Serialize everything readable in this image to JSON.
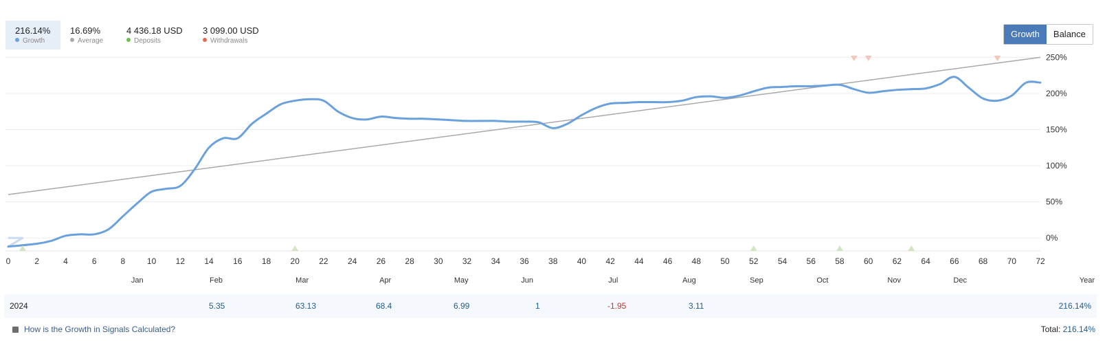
{
  "stats": [
    {
      "value": "216.14%",
      "label": "Growth",
      "color": "#6aa0dc"
    },
    {
      "value": "16.69%",
      "label": "Average",
      "color": "#a8a8a8"
    },
    {
      "value": "4 436.18 USD",
      "label": "Deposits",
      "color": "#6cbf4e"
    },
    {
      "value": "3 099.00 USD",
      "label": "Withdrawals",
      "color": "#e56b53"
    }
  ],
  "toggle": {
    "growth_label": "Growth",
    "balance_label": "Balance"
  },
  "chart_data": {
    "type": "line",
    "xlim": [
      0,
      72
    ],
    "ylim": [
      -18,
      258
    ],
    "x_ticks": [
      0,
      2,
      4,
      6,
      8,
      10,
      12,
      14,
      16,
      18,
      20,
      22,
      24,
      26,
      28,
      30,
      32,
      34,
      36,
      38,
      40,
      42,
      44,
      46,
      48,
      50,
      52,
      54,
      56,
      58,
      60,
      62,
      64,
      66,
      68,
      70,
      72
    ],
    "y_ticks": [
      0,
      50,
      100,
      150,
      200,
      250
    ],
    "y_tick_labels": [
      "0%",
      "50%",
      "100%",
      "150%",
      "200%",
      "250%"
    ],
    "months": [
      {
        "label": "Jan",
        "x": 9
      },
      {
        "label": "Feb",
        "x": 14.5
      },
      {
        "label": "Mar",
        "x": 20.5
      },
      {
        "label": "Apr",
        "x": 26.3
      },
      {
        "label": "May",
        "x": 31.6
      },
      {
        "label": "Jun",
        "x": 36.2
      },
      {
        "label": "Jul",
        "x": 42.2
      },
      {
        "label": "Aug",
        "x": 47.5
      },
      {
        "label": "Sep",
        "x": 52.2
      },
      {
        "label": "Oct",
        "x": 56.8
      },
      {
        "label": "Nov",
        "x": 61.8
      },
      {
        "label": "Dec",
        "x": 66.4
      }
    ],
    "year_label": "Year",
    "grid": true,
    "series": [
      {
        "name": "Growth",
        "color": "#6aa0dc",
        "x": [
          0,
          2,
          3,
          4,
          5,
          6,
          7,
          8,
          9,
          10,
          11,
          12,
          13,
          14,
          15,
          16,
          17,
          18,
          19,
          20,
          21,
          22,
          23,
          24,
          25,
          26,
          27,
          28,
          29,
          30,
          31,
          32,
          33,
          34,
          35,
          36,
          37,
          38,
          39,
          40,
          41,
          42,
          43,
          44,
          45,
          46,
          47,
          48,
          49,
          50,
          51,
          52,
          53,
          54,
          55,
          56,
          57,
          58,
          59,
          60,
          61,
          62,
          63,
          64,
          65,
          66,
          67,
          68,
          69,
          70,
          71,
          72
        ],
        "y": [
          -12,
          -8,
          -4,
          3,
          5,
          5,
          12,
          30,
          48,
          64,
          68,
          72,
          95,
          125,
          138,
          138,
          158,
          172,
          185,
          190,
          192,
          190,
          175,
          166,
          164,
          168,
          166,
          165,
          165,
          164,
          163,
          162,
          162,
          162,
          161,
          161,
          160,
          152,
          158,
          170,
          180,
          186,
          187,
          188,
          188,
          188,
          190,
          195,
          196,
          194,
          197,
          203,
          208,
          209,
          210,
          210,
          211,
          212,
          206,
          201,
          203,
          205,
          206,
          207,
          213,
          223,
          208,
          193,
          190,
          197,
          215,
          215
        ]
      },
      {
        "name": "Average",
        "color": "#a8a8a8",
        "x": [
          0,
          72
        ],
        "y": [
          60,
          250
        ]
      }
    ],
    "deposit_markers_x": [
      1,
      20,
      52,
      58,
      63
    ],
    "withdrawal_markers_x": [
      59,
      60,
      69
    ],
    "marker_colors": {
      "deposit": "#cfe6c4",
      "withdrawal": "#f6c8bc"
    }
  },
  "year_row": {
    "year": "2024",
    "months": [
      "5.35",
      "63.13",
      "68.4",
      "6.99",
      "1",
      "-1.95",
      "3.11"
    ],
    "total": "216.14%"
  },
  "footer": {
    "help_text": "How is the Growth in Signals Calculated?",
    "total_label": "Total:",
    "total_value": "216.14%"
  }
}
